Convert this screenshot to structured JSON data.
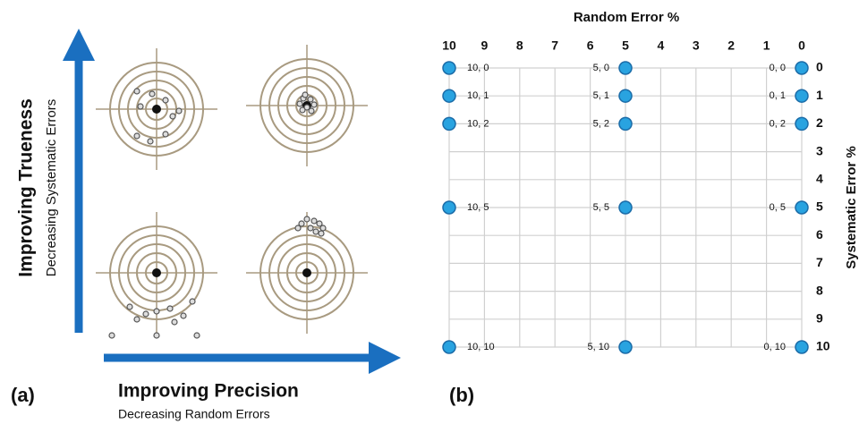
{
  "panel_a": {
    "label": "(a)",
    "y_title": "Improving Trueness",
    "y_subtitle": "Decreasing Systematic Errors",
    "x_title": "Improving Precision",
    "x_subtitle": "Decreasing Random Errors"
  },
  "chart_data": {
    "type": "scatter",
    "panel_label": "(b)",
    "x_label": "Random Error %",
    "y_label": "Systematic Error %",
    "series": [
      {
        "color": "#29a3e0",
        "x": [
          10,
          5,
          0,
          10,
          5,
          0,
          10,
          5,
          0,
          10,
          5,
          0,
          10,
          5,
          0
        ],
        "y": [
          0,
          0,
          0,
          1,
          1,
          1,
          2,
          2,
          2,
          5,
          5,
          5,
          10,
          10,
          10
        ],
        "value_labels": [
          "10, 0",
          "5, 0",
          "0, 0",
          "10, 1",
          "5, 1",
          "0, 1",
          "10, 2",
          "5, 2",
          "0, 2",
          "10, 5",
          "5, 5",
          "0, 5",
          "10, 10",
          "5, 10",
          "0, 10"
        ]
      }
    ],
    "xlim": [
      10,
      0
    ],
    "ylim": [
      0,
      10
    ],
    "xticks": [
      10,
      9,
      8,
      7,
      6,
      5,
      4,
      3,
      2,
      1,
      0
    ],
    "yticks": [
      0,
      1,
      2,
      3,
      4,
      5,
      6,
      7,
      8,
      9,
      10
    ],
    "grid": true
  }
}
